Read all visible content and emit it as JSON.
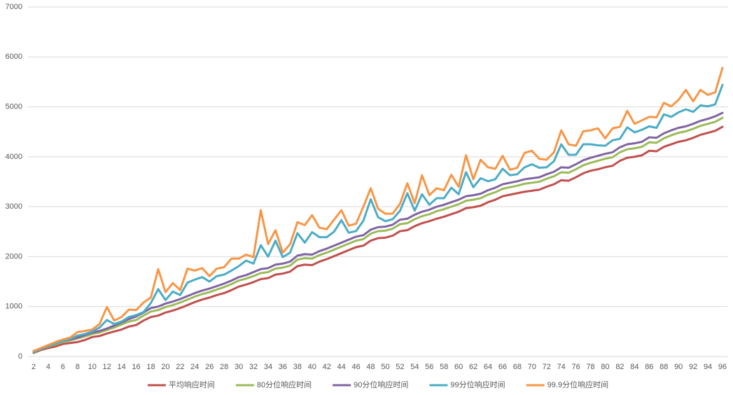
{
  "chart_data": {
    "type": "line",
    "categories": [
      2,
      null,
      4,
      null,
      6,
      null,
      8,
      null,
      10,
      null,
      12,
      null,
      14,
      null,
      16,
      null,
      18,
      null,
      20,
      null,
      22,
      null,
      24,
      null,
      26,
      null,
      28,
      null,
      30,
      null,
      32,
      null,
      34,
      null,
      36,
      null,
      38,
      null,
      40,
      null,
      42,
      null,
      44,
      null,
      46,
      null,
      48,
      null,
      50,
      null,
      52,
      null,
      54,
      null,
      56,
      null,
      58,
      null,
      60,
      null,
      62,
      null,
      64,
      null,
      66,
      null,
      68,
      null,
      70,
      null,
      72,
      null,
      74,
      null,
      76,
      null,
      78,
      null,
      80,
      null,
      82,
      null,
      84,
      null,
      86,
      null,
      88,
      null,
      90,
      null,
      92,
      null,
      94,
      null,
      96
    ],
    "ylim": [
      0,
      7000
    ],
    "yticks": [
      0,
      1000,
      2000,
      3000,
      4000,
      5000,
      6000,
      7000
    ],
    "grid": true,
    "legend": "bottom",
    "series": [
      {
        "name": "平均响应时间",
        "color": "#c0504d",
        "values": [
          70,
          130,
          170,
          200,
          250,
          270,
          290,
          330,
          390,
          410,
          460,
          500,
          540,
          600,
          630,
          720,
          790,
          820,
          880,
          920,
          970,
          1030,
          1090,
          1140,
          1180,
          1230,
          1270,
          1330,
          1400,
          1440,
          1490,
          1550,
          1570,
          1640,
          1660,
          1700,
          1810,
          1840,
          1830,
          1900,
          1950,
          2010,
          2070,
          2130,
          2190,
          2220,
          2320,
          2370,
          2380,
          2420,
          2510,
          2530,
          2610,
          2670,
          2710,
          2760,
          2800,
          2850,
          2900,
          2970,
          2990,
          3020,
          3090,
          3140,
          3210,
          3240,
          3270,
          3300,
          3320,
          3340,
          3400,
          3450,
          3530,
          3520,
          3590,
          3670,
          3720,
          3750,
          3790,
          3820,
          3920,
          3980,
          4000,
          4030,
          4120,
          4110,
          4200,
          4250,
          4300,
          4330,
          4380,
          4440,
          4480,
          4520,
          4600
        ]
      },
      {
        "name": "80分位响应时间",
        "color": "#9bbb59",
        "values": [
          80,
          150,
          200,
          240,
          290,
          320,
          360,
          400,
          450,
          480,
          530,
          580,
          640,
          700,
          730,
          820,
          900,
          930,
          990,
          1030,
          1080,
          1140,
          1200,
          1250,
          1290,
          1340,
          1390,
          1450,
          1520,
          1560,
          1610,
          1670,
          1690,
          1760,
          1780,
          1820,
          1940,
          1970,
          1960,
          2030,
          2080,
          2140,
          2200,
          2260,
          2320,
          2350,
          2460,
          2510,
          2520,
          2560,
          2650,
          2670,
          2750,
          2810,
          2850,
          2910,
          2950,
          3000,
          3050,
          3120,
          3140,
          3170,
          3240,
          3290,
          3360,
          3390,
          3420,
          3460,
          3480,
          3500,
          3560,
          3610,
          3690,
          3680,
          3750,
          3830,
          3880,
          3920,
          3960,
          3990,
          4090,
          4150,
          4170,
          4200,
          4290,
          4280,
          4370,
          4430,
          4480,
          4510,
          4560,
          4620,
          4660,
          4700,
          4780
        ]
      },
      {
        "name": "90分位响应时间",
        "color": "#8064a2",
        "values": [
          90,
          170,
          220,
          260,
          310,
          340,
          380,
          430,
          480,
          510,
          560,
          620,
          680,
          750,
          800,
          880,
          970,
          1000,
          1060,
          1100,
          1150,
          1210,
          1270,
          1320,
          1360,
          1410,
          1460,
          1520,
          1590,
          1630,
          1690,
          1750,
          1770,
          1840,
          1860,
          1900,
          2020,
          2050,
          2040,
          2110,
          2160,
          2220,
          2280,
          2340,
          2400,
          2430,
          2540,
          2590,
          2600,
          2640,
          2740,
          2760,
          2840,
          2900,
          2940,
          3000,
          3040,
          3090,
          3140,
          3210,
          3230,
          3260,
          3330,
          3380,
          3450,
          3480,
          3510,
          3550,
          3570,
          3590,
          3650,
          3700,
          3790,
          3780,
          3850,
          3930,
          3980,
          4020,
          4060,
          4090,
          4190,
          4250,
          4270,
          4300,
          4390,
          4380,
          4470,
          4530,
          4580,
          4610,
          4660,
          4720,
          4760,
          4810,
          4880
        ]
      },
      {
        "name": "99分位响应时间",
        "color": "#4bacc6",
        "values": [
          90,
          150,
          210,
          260,
          310,
          350,
          420,
          450,
          500,
          580,
          730,
          650,
          700,
          790,
          830,
          890,
          1070,
          1350,
          1130,
          1300,
          1230,
          1480,
          1540,
          1590,
          1500,
          1610,
          1640,
          1720,
          1810,
          1920,
          1860,
          2230,
          2000,
          2320,
          1990,
          2080,
          2470,
          2280,
          2490,
          2390,
          2390,
          2500,
          2730,
          2480,
          2510,
          2720,
          3150,
          2790,
          2710,
          2750,
          2920,
          3270,
          2920,
          3250,
          3040,
          3170,
          3170,
          3380,
          3250,
          3690,
          3390,
          3570,
          3510,
          3550,
          3760,
          3630,
          3650,
          3790,
          3850,
          3780,
          3790,
          3910,
          4250,
          4040,
          4040,
          4250,
          4250,
          4230,
          4220,
          4330,
          4360,
          4590,
          4490,
          4540,
          4610,
          4580,
          4850,
          4800,
          4890,
          4950,
          4900,
          5030,
          5010,
          5050,
          5440
        ]
      },
      {
        "name": "99.9分位响应时间",
        "color": "#f79646",
        "values": [
          110,
          170,
          230,
          290,
          340,
          380,
          490,
          510,
          540,
          650,
          990,
          720,
          790,
          940,
          930,
          1080,
          1180,
          1750,
          1290,
          1470,
          1330,
          1760,
          1720,
          1770,
          1610,
          1760,
          1790,
          1960,
          1960,
          2040,
          1990,
          2930,
          2250,
          2530,
          2080,
          2250,
          2690,
          2630,
          2830,
          2580,
          2550,
          2740,
          2930,
          2620,
          2660,
          3000,
          3370,
          2960,
          2860,
          2860,
          3060,
          3470,
          3070,
          3630,
          3230,
          3370,
          3330,
          3640,
          3400,
          4030,
          3550,
          3940,
          3790,
          3760,
          4020,
          3740,
          3780,
          4080,
          4120,
          3960,
          3940,
          4090,
          4530,
          4250,
          4220,
          4510,
          4530,
          4570,
          4370,
          4570,
          4600,
          4920,
          4660,
          4730,
          4800,
          4790,
          5080,
          5010,
          5140,
          5340,
          5110,
          5340,
          5240,
          5290,
          5780
        ]
      }
    ]
  }
}
